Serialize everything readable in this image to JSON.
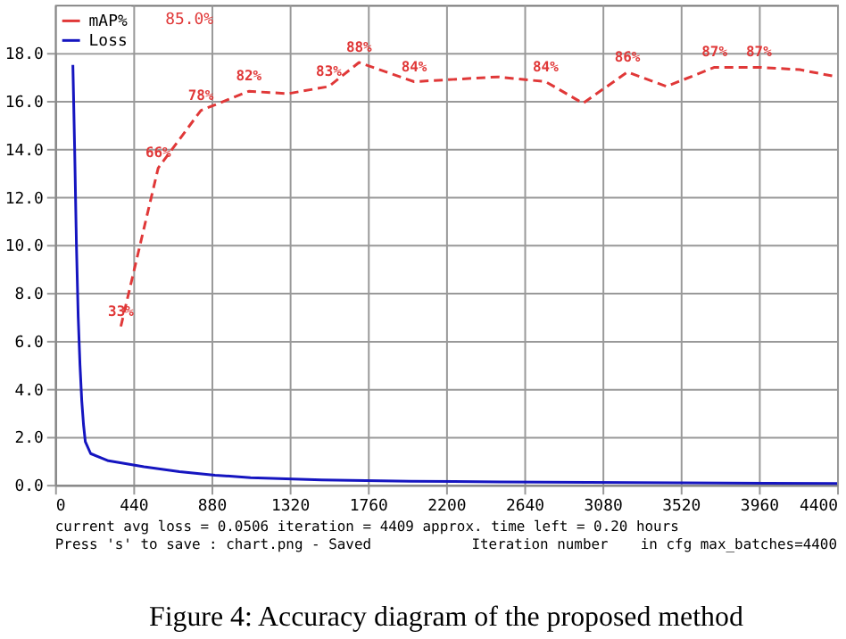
{
  "chart_data": {
    "type": "line",
    "title": "Figure 4: Accuracy diagram of the proposed method",
    "xlabel": "Iteration number",
    "annotations": [
      "85.0%",
      "current avg loss = 0.0506    iteration = 4409    approx. time left = 0.20 hours",
      "Press 's' to save : chart.png - Saved",
      "in cfg max_batches=4400"
    ],
    "series": [
      {
        "name": "mAP%",
        "color": "#e03838",
        "line_style": "dashed",
        "axis": "y2",
        "x": [
          370,
          580,
          820,
          1090,
          1310,
          1540,
          1710,
          2020,
          2490,
          2760,
          2970,
          3220,
          3440,
          3710,
          3960,
          4190,
          4400
        ],
        "values": [
          33,
          66,
          78,
          82,
          81.5,
          83,
          88,
          84,
          85,
          84,
          79.5,
          86,
          83,
          87,
          87,
          86.5,
          85
        ],
        "value_labels": [
          "33%",
          "66%",
          "78%",
          "82%",
          null,
          "83%",
          "88%",
          "84%",
          null,
          "84%",
          null,
          "86%",
          null,
          "87%",
          "87%",
          null,
          null
        ]
      },
      {
        "name": "Loss",
        "color": "#1515c0",
        "line_style": "solid",
        "x": [
          100,
          110,
          120,
          130,
          140,
          150,
          160,
          170,
          200,
          300,
          500,
          700,
          900,
          1100,
          1300,
          1500,
          2000,
          2500,
          3000,
          3500,
          4000,
          4400
        ],
        "values": [
          17.5,
          14,
          10,
          7,
          5,
          3.5,
          2.5,
          1.8,
          1.3,
          1.0,
          0.75,
          0.55,
          0.4,
          0.3,
          0.25,
          0.2,
          0.15,
          0.12,
          0.1,
          0.08,
          0.06,
          0.05
        ]
      }
    ],
    "xlim": [
      0,
      4400
    ],
    "xticks": [
      0,
      440,
      880,
      1320,
      1760,
      2200,
      2640,
      3080,
      3520,
      3960,
      4400
    ],
    "ylim": [
      0,
      20
    ],
    "yticks": [
      {
        "value": 0,
        "label": "0.0"
      },
      {
        "value": 2,
        "label": "2.0"
      },
      {
        "value": 4,
        "label": "4.0"
      },
      {
        "value": 6,
        "label": "6.0"
      },
      {
        "value": 8,
        "label": "8.0"
      },
      {
        "value": 10,
        "label": "10.0"
      },
      {
        "value": 12,
        "label": "12.0"
      },
      {
        "value": 14,
        "label": "14.0"
      },
      {
        "value": 16,
        "label": "16.0"
      },
      {
        "value": 18,
        "label": "18.0"
      }
    ],
    "y2lim": [
      0,
      100
    ],
    "grid": true,
    "legend": "top left",
    "marker": "none"
  }
}
